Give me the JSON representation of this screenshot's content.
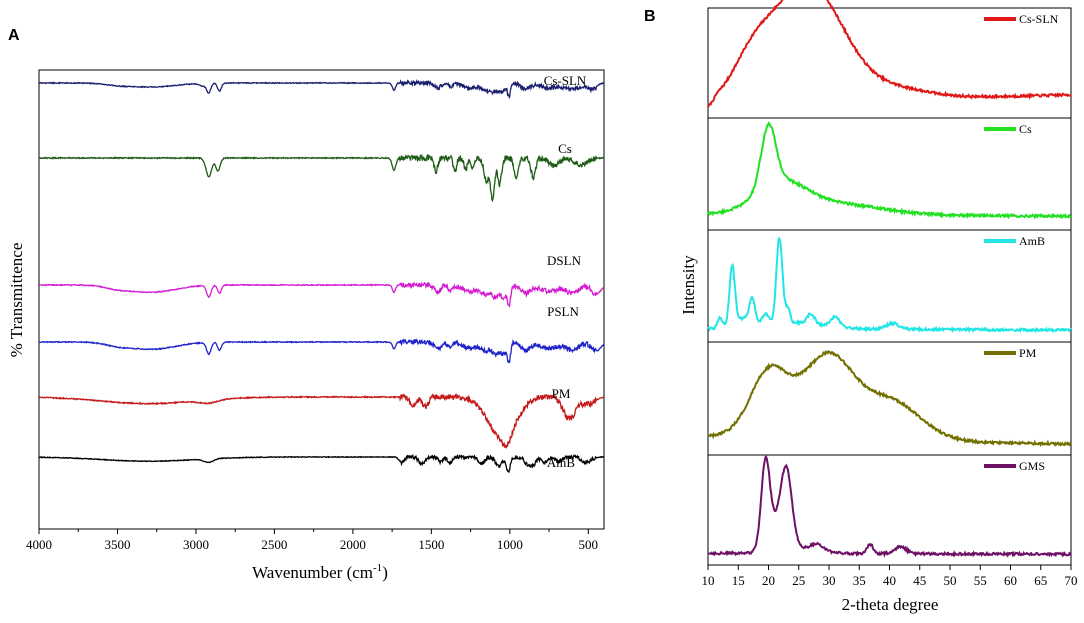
{
  "chart_data": [
    {
      "panel": "A",
      "type": "line",
      "title": "",
      "xlabel": "Wavenumber (cm",
      "xlabel_sup": "-1",
      "xlabel_close": ")",
      "ylabel": "% Transmittence",
      "xlim": [
        4000,
        400
      ],
      "xticks": [
        "4000",
        "3500",
        "3000",
        "2500",
        "2000",
        "1500",
        "1000",
        "500"
      ],
      "xtick_values": [
        4000,
        3500,
        3000,
        2500,
        2000,
        1500,
        1000,
        500
      ],
      "series": [
        {
          "name": "Cs-SLN",
          "color": "#1a1f6e",
          "baseline": 0.0,
          "bands": [
            [
              3500,
              80,
              0.1
            ],
            [
              3280,
              150,
              0.25
            ],
            [
              2950,
              25,
              0.18
            ],
            [
              2918,
              12,
              0.55
            ],
            [
              2850,
              12,
              0.5
            ],
            [
              1738,
              10,
              0.45
            ],
            [
              1460,
              20,
              0.3
            ],
            [
              1380,
              14,
              0.22
            ],
            [
              1250,
              50,
              0.28
            ],
            [
              1150,
              30,
              0.35
            ],
            [
              1100,
              25,
              0.45
            ],
            [
              1050,
              20,
              0.55
            ],
            [
              1005,
              10,
              0.8
            ],
            [
              900,
              30,
              0.35
            ],
            [
              750,
              60,
              0.3
            ],
            [
              600,
              50,
              0.35
            ],
            [
              480,
              30,
              0.4
            ]
          ]
        },
        {
          "name": "Cs",
          "color": "#1e5c16",
          "baseline": 0.0,
          "bands": [
            [
              2918,
              18,
              0.85
            ],
            [
              2860,
              14,
              0.6
            ],
            [
              1738,
              12,
              0.55
            ],
            [
              1470,
              12,
              0.6
            ],
            [
              1350,
              10,
              0.6
            ],
            [
              1280,
              10,
              0.55
            ],
            [
              1240,
              10,
              0.45
            ],
            [
              1150,
              15,
              1.0
            ],
            [
              1110,
              14,
              1.8
            ],
            [
              1065,
              12,
              1.2
            ],
            [
              960,
              14,
              0.9
            ],
            [
              850,
              15,
              0.9
            ],
            [
              720,
              30,
              0.35
            ],
            [
              540,
              40,
              0.3
            ]
          ]
        },
        {
          "name": "DSLN",
          "color": "#d21bd2",
          "baseline": 0.0,
          "bands": [
            [
              3500,
              80,
              0.15
            ],
            [
              3280,
              150,
              0.4
            ],
            [
              2918,
              14,
              0.65
            ],
            [
              2850,
              12,
              0.45
            ],
            [
              1738,
              10,
              0.4
            ],
            [
              1460,
              20,
              0.4
            ],
            [
              1380,
              15,
              0.3
            ],
            [
              1250,
              50,
              0.35
            ],
            [
              1150,
              30,
              0.45
            ],
            [
              1090,
              20,
              0.6
            ],
            [
              1040,
              20,
              0.65
            ],
            [
              1005,
              10,
              1.0
            ],
            [
              900,
              30,
              0.45
            ],
            [
              750,
              60,
              0.35
            ],
            [
              600,
              40,
              0.45
            ],
            [
              450,
              30,
              0.5
            ]
          ]
        },
        {
          "name": "PSLN",
          "color": "#1f24c8",
          "baseline": 0.0,
          "bands": [
            [
              3500,
              80,
              0.15
            ],
            [
              3280,
              150,
              0.4
            ],
            [
              2918,
              14,
              0.65
            ],
            [
              2850,
              12,
              0.45
            ],
            [
              1738,
              10,
              0.4
            ],
            [
              1460,
              20,
              0.4
            ],
            [
              1380,
              15,
              0.3
            ],
            [
              1250,
              50,
              0.35
            ],
            [
              1150,
              30,
              0.45
            ],
            [
              1090,
              20,
              0.6
            ],
            [
              1040,
              20,
              0.65
            ],
            [
              1005,
              10,
              1.0
            ],
            [
              900,
              30,
              0.45
            ],
            [
              750,
              60,
              0.35
            ],
            [
              600,
              40,
              0.45
            ],
            [
              450,
              30,
              0.5
            ]
          ]
        },
        {
          "name": "PM",
          "color": "#c41a1a",
          "baseline": 0.0,
          "bands": [
            [
              3300,
              300,
              0.3
            ],
            [
              2920,
              60,
              0.15
            ],
            [
              1620,
              20,
              0.35
            ],
            [
              1540,
              20,
              0.45
            ],
            [
              1050,
              90,
              1.8
            ],
            [
              1020,
              30,
              0.5
            ],
            [
              620,
              40,
              1.0
            ],
            [
              500,
              40,
              0.3
            ]
          ]
        },
        {
          "name": "AmB",
          "color": "#000000",
          "baseline": 0.0,
          "bands": [
            [
              3300,
              300,
              0.3
            ],
            [
              2920,
              30,
              0.25
            ],
            [
              1690,
              15,
              0.4
            ],
            [
              1560,
              20,
              0.5
            ],
            [
              1440,
              15,
              0.35
            ],
            [
              1380,
              15,
              0.4
            ],
            [
              1180,
              20,
              0.5
            ],
            [
              1070,
              20,
              0.7
            ],
            [
              1010,
              12,
              1.1
            ],
            [
              885,
              20,
              0.55
            ],
            [
              850,
              15,
              0.5
            ],
            [
              780,
              20,
              0.4
            ],
            [
              690,
              20,
              0.35
            ],
            [
              510,
              30,
              0.4
            ]
          ]
        }
      ]
    },
    {
      "panel": "B",
      "type": "line",
      "title": "",
      "xlabel": "2-theta degree",
      "ylabel": "Intensity",
      "xlim": [
        10,
        70
      ],
      "xticks": [
        "10",
        "15",
        "20",
        "25",
        "30",
        "35",
        "40",
        "45",
        "50",
        "55",
        "60",
        "65",
        "70"
      ],
      "xtick_values": [
        10,
        15,
        20,
        25,
        30,
        35,
        40,
        45,
        50,
        55,
        60,
        65,
        70
      ],
      "series": [
        {
          "name": "Cs-SLN",
          "color": "#e01818",
          "baseline": [
            0.08,
            0.18
          ],
          "peaks": [
            [
              23.5,
              5.5,
              0.78
            ],
            [
              29,
              5,
              0.62
            ],
            [
              17,
              3,
              0.25
            ],
            [
              40,
              6,
              0.12
            ]
          ]
        },
        {
          "name": "Cs",
          "color": "#22e022",
          "baseline": [
            0.1,
            0.08
          ],
          "peaks": [
            [
              20,
              1.2,
              0.62
            ],
            [
              22,
              4,
              0.28
            ],
            [
              30,
              8,
              0.12
            ]
          ]
        },
        {
          "name": "AmB",
          "color": "#22e6e6",
          "baseline": [
            0.08,
            0.06
          ],
          "peaks": [
            [
              12,
              0.4,
              0.1
            ],
            [
              14,
              0.45,
              0.6
            ],
            [
              17.3,
              0.45,
              0.25
            ],
            [
              21.8,
              0.5,
              0.88
            ],
            [
              19.5,
              0.6,
              0.12
            ],
            [
              23.2,
              0.4,
              0.15
            ],
            [
              27,
              0.6,
              0.1
            ],
            [
              31,
              0.8,
              0.1
            ],
            [
              40.5,
              1.0,
              0.06
            ],
            [
              16,
              1.5,
              0.1
            ],
            [
              25,
              4,
              0.06
            ]
          ]
        },
        {
          "name": "PM",
          "color": "#727000",
          "baseline": [
            0.12,
            0.05
          ],
          "peaks": [
            [
              20,
              3,
              0.55
            ],
            [
              30,
              4,
              0.68
            ],
            [
              40,
              5,
              0.4
            ],
            [
              25,
              6,
              0.2
            ]
          ]
        },
        {
          "name": "GMS",
          "color": "#6e1066",
          "baseline": [
            0.06,
            0.05
          ],
          "peaks": [
            [
              19.5,
              0.7,
              0.85
            ],
            [
              23,
              0.9,
              0.72
            ],
            [
              21.3,
              1.5,
              0.3
            ],
            [
              28,
              1.0,
              0.06
            ],
            [
              36.8,
              0.5,
              0.1
            ],
            [
              41.8,
              1.0,
              0.07
            ],
            [
              26,
              3,
              0.05
            ]
          ]
        }
      ]
    }
  ]
}
